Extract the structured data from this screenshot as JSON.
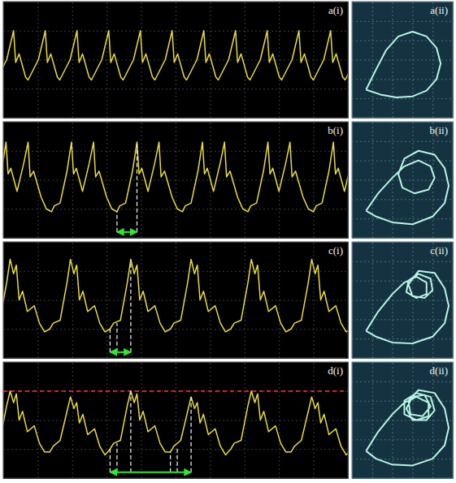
{
  "chart_data": [
    {
      "type": "line",
      "title": "a(i)",
      "x": [
        -0.2,
        0.1,
        0.3,
        0.36,
        0.46,
        0.65,
        0.72,
        1.02,
        1.22,
        1.28,
        1.38,
        1.57,
        1.64,
        1.94,
        2.14,
        2.2,
        2.3,
        2.49,
        2.56,
        2.86,
        3.06,
        3.12,
        3.22,
        3.41,
        3.48,
        3.78,
        3.98,
        4.04,
        4.14,
        4.33,
        4.4,
        4.7,
        4.9,
        4.96,
        5.06,
        5.25,
        5.32,
        5.62,
        5.82,
        5.88,
        5.98,
        6.17,
        6.24,
        6.54,
        6.74,
        6.8,
        6.9,
        7.09,
        7.16,
        7.46,
        7.66,
        7.72,
        7.82,
        8.01,
        8.08,
        8.38,
        8.58,
        8.64,
        8.74,
        8.93,
        9.0,
        9.3,
        9.5,
        9.56,
        9.66,
        9.85,
        9.92,
        10.22
      ],
      "series": [
        {
          "color": "#e8dc3c",
          "values": [
            1.3,
            2.0,
            3.0,
            1.9,
            2.2,
            1.4,
            1.3,
            2.0,
            3.0,
            1.9,
            2.2,
            1.4,
            1.3,
            2.0,
            3.0,
            1.9,
            2.2,
            1.4,
            1.3,
            2.0,
            3.0,
            1.9,
            2.2,
            1.4,
            1.3,
            2.0,
            3.0,
            1.9,
            2.2,
            1.4,
            1.3,
            2.0,
            3.0,
            1.9,
            2.2,
            1.4,
            1.3,
            2.0,
            3.0,
            1.9,
            2.2,
            1.4,
            1.3,
            2.0,
            3.0,
            1.9,
            2.2,
            1.4,
            1.3,
            2.0,
            3.0,
            1.9,
            2.2,
            1.4,
            1.3,
            2.0,
            3.0,
            1.9,
            2.2,
            1.4,
            1.3,
            2.0,
            3.0,
            1.9,
            2.2,
            1.4,
            1.3,
            2.0
          ]
        }
      ],
      "xlim": [
        0,
        10
      ],
      "ylim": [
        0,
        4
      ],
      "xticks": [
        0,
        1,
        2,
        3,
        4,
        5,
        6,
        7,
        8,
        9,
        10
      ],
      "yticks": [
        0,
        1,
        2,
        3,
        4
      ],
      "grid": true,
      "tick_labels": false
    },
    {
      "type": "line",
      "title": "a(ii)",
      "x": [
        0.7,
        1.2,
        1.7,
        2.3,
        3.0,
        3.7,
        4.2,
        4.4,
        4.2,
        3.7,
        3.0,
        2.2,
        1.4,
        0.7
      ],
      "series": [
        {
          "color": "#b8f5e4",
          "values": [
            1.45,
            2.5,
            3.5,
            4.2,
            4.45,
            4.2,
            3.6,
            2.8,
            2.0,
            1.4,
            1.1,
            1.05,
            1.2,
            1.45
          ]
        }
      ],
      "xlim": [
        0,
        5
      ],
      "ylim": [
        0,
        6
      ],
      "xticks": [
        0,
        1,
        2,
        3,
        4,
        5
      ],
      "yticks": [
        0,
        1,
        2,
        3,
        4,
        5,
        6
      ],
      "grid": true,
      "tick_labels": false
    },
    {
      "type": "line",
      "title": "b(i)",
      "x": [
        -0.5,
        -0.42,
        -0.25,
        -0.05,
        0.08,
        0.14,
        0.22,
        0.4,
        0.6,
        0.72,
        0.78,
        0.88,
        1.1,
        1.25,
        1.4,
        1.48,
        1.65,
        1.85,
        1.98,
        2.04,
        2.12,
        2.3,
        2.5,
        2.62,
        2.68,
        2.78,
        3.0,
        3.15,
        3.3,
        3.38,
        3.55,
        3.75,
        3.88,
        3.94,
        4.02,
        4.2,
        4.4,
        4.52,
        4.58,
        4.68,
        4.9,
        5.05,
        5.2,
        5.28,
        5.45,
        5.65,
        5.78,
        5.84,
        5.92,
        6.1,
        6.3,
        6.42,
        6.48,
        6.58,
        6.8,
        6.95,
        7.1,
        7.18,
        7.35,
        7.55,
        7.68,
        7.74,
        7.82,
        8.0,
        8.2,
        8.32,
        8.38,
        8.48,
        8.7,
        8.85,
        9.0,
        9.08,
        9.25,
        9.45,
        9.58,
        9.64,
        9.72,
        9.9,
        10.1,
        10.22
      ],
      "series": [
        {
          "color": "#e8dc3c",
          "values": [
            0.9,
            1.1,
            1.2,
            2.3,
            3.3,
            2.2,
            2.4,
            1.6,
            2.6,
            3.3,
            2.1,
            2.3,
            1.4,
            1.0,
            0.9,
            1.1,
            1.2,
            2.3,
            3.3,
            2.2,
            2.4,
            1.6,
            2.6,
            3.3,
            2.1,
            2.3,
            1.4,
            1.0,
            0.9,
            1.1,
            1.2,
            2.3,
            3.3,
            2.2,
            2.4,
            1.6,
            2.6,
            3.3,
            2.1,
            2.3,
            1.4,
            1.0,
            0.9,
            1.1,
            1.2,
            2.3,
            3.3,
            2.2,
            2.4,
            1.6,
            2.6,
            3.3,
            2.1,
            2.3,
            1.4,
            1.0,
            0.9,
            1.1,
            1.2,
            2.3,
            3.3,
            2.2,
            2.4,
            1.6,
            2.6,
            3.3,
            2.1,
            2.3,
            1.4,
            1.0,
            0.9,
            1.1,
            1.2,
            2.3,
            3.3,
            2.2,
            2.4,
            1.6,
            2.6,
            3.3
          ]
        }
      ],
      "vlines": [
        {
          "x": 3.3,
          "y": [
            0.2,
            0.9
          ]
        },
        {
          "x": 3.88,
          "y": [
            0.2,
            3.3
          ]
        }
      ],
      "arrow": {
        "x": [
          3.3,
          3.88
        ],
        "y": 0.2,
        "color": "#2ee82e"
      },
      "xlim": [
        0,
        10
      ],
      "ylim": [
        0,
        4
      ],
      "xticks": [
        0,
        1,
        2,
        3,
        4,
        5,
        6,
        7,
        8,
        9,
        10
      ],
      "yticks": [
        0,
        1,
        2,
        3,
        4
      ],
      "grid": true,
      "tick_labels": false
    },
    {
      "type": "line",
      "title": "b(ii)",
      "x": [
        0.7,
        1.3,
        2.0,
        2.6,
        3.3,
        3.9,
        4.1,
        3.8,
        3.1,
        2.5,
        2.3,
        2.6,
        3.3,
        4.1,
        4.6,
        4.8,
        4.6,
        4.0,
        3.0,
        2.0,
        1.2,
        0.7
      ],
      "series": [
        {
          "color": "#b8f5e4",
          "values": [
            1.4,
            2.3,
            3.1,
            3.7,
            4.0,
            3.7,
            3.1,
            2.5,
            2.3,
            2.6,
            3.3,
            4.1,
            4.5,
            4.3,
            3.6,
            2.7,
            1.8,
            1.1,
            0.7,
            0.8,
            1.1,
            1.4
          ]
        }
      ],
      "xlim": [
        0,
        5
      ],
      "ylim": [
        0,
        6
      ],
      "xticks": [
        0,
        1,
        2,
        3,
        4,
        5
      ],
      "yticks": [
        0,
        1,
        2,
        3,
        4,
        5,
        6
      ],
      "grid": true,
      "tick_labels": false
    },
    {
      "type": "line",
      "title": "c(i)",
      "x": [
        -0.4,
        -0.3,
        -0.1,
        0.1,
        0.2,
        0.3,
        0.38,
        0.46,
        0.56,
        0.7,
        0.9,
        1.05,
        1.2,
        1.35,
        1.45,
        1.65,
        1.85,
        1.95,
        2.05,
        2.13,
        2.21,
        2.31,
        2.45,
        2.65,
        2.8,
        2.95,
        3.1,
        3.2,
        3.4,
        3.6,
        3.7,
        3.8,
        3.88,
        3.96,
        4.06,
        4.2,
        4.4,
        4.55,
        4.7,
        4.85,
        4.95,
        5.15,
        5.35,
        5.45,
        5.55,
        5.63,
        5.71,
        5.81,
        5.95,
        6.15,
        6.3,
        6.45,
        6.6,
        6.7,
        6.9,
        7.1,
        7.2,
        7.3,
        7.38,
        7.46,
        7.56,
        7.7,
        7.9,
        8.05,
        8.2,
        8.35,
        8.45,
        8.65,
        8.85,
        8.95,
        9.05,
        9.13,
        9.21,
        9.31,
        9.45,
        9.65,
        9.8,
        9.95,
        10.1
      ],
      "series": [
        {
          "color": "#e8dc3c",
          "values": [
            1.0,
            1.2,
            1.3,
            2.6,
            3.4,
            2.9,
            3.2,
            2.0,
            2.3,
            1.6,
            1.8,
            1.2,
            0.9,
            1.0,
            1.2,
            1.3,
            2.6,
            3.4,
            2.9,
            3.2,
            2.0,
            2.3,
            1.6,
            1.8,
            1.2,
            0.9,
            1.0,
            1.2,
            1.3,
            2.6,
            3.4,
            2.9,
            3.2,
            2.0,
            2.3,
            1.6,
            1.8,
            1.2,
            0.9,
            1.0,
            1.2,
            1.3,
            2.6,
            3.4,
            2.9,
            3.2,
            2.0,
            2.3,
            1.6,
            1.8,
            1.2,
            0.9,
            1.0,
            1.2,
            1.3,
            2.6,
            3.4,
            2.9,
            3.2,
            2.0,
            2.3,
            1.6,
            1.8,
            1.2,
            0.9,
            1.0,
            1.2,
            1.3,
            2.6,
            3.4,
            2.9,
            3.2,
            2.0,
            2.3,
            1.6,
            1.8,
            1.2,
            0.9,
            1.0
          ]
        }
      ],
      "vlines": [
        {
          "x": 3.1,
          "y": [
            0.2,
            1.0
          ]
        },
        {
          "x": 3.3,
          "y": [
            0.2,
            1.2
          ]
        },
        {
          "x": 3.7,
          "y": [
            0.2,
            3.4
          ]
        }
      ],
      "arrow": {
        "x": [
          3.1,
          3.7
        ],
        "y": 0.2,
        "color": "#2ee82e"
      },
      "xlim": [
        0,
        10
      ],
      "ylim": [
        0,
        4
      ],
      "xticks": [
        0,
        1,
        2,
        3,
        4,
        5,
        6,
        7,
        8,
        9,
        10
      ],
      "yticks": [
        0,
        1,
        2,
        3,
        4
      ],
      "grid": true,
      "tick_labels": false
    },
    {
      "type": "line",
      "title": "c(ii)",
      "x": [
        0.7,
        1.3,
        2.0,
        2.6,
        3.2,
        3.7,
        3.7,
        3.2,
        2.7,
        2.8,
        3.3,
        3.9,
        4.0,
        3.6,
        3.0,
        2.8,
        3.3,
        4.1,
        4.6,
        4.8,
        4.6,
        4.0,
        3.0,
        2.0,
        1.2,
        0.7
      ],
      "series": [
        {
          "color": "#b8f5e4",
          "values": [
            1.4,
            2.4,
            3.3,
            3.9,
            4.2,
            3.9,
            3.3,
            3.1,
            3.4,
            4.0,
            4.35,
            4.1,
            3.5,
            3.1,
            3.2,
            3.8,
            4.5,
            4.4,
            3.6,
            2.7,
            1.8,
            1.1,
            0.75,
            0.8,
            1.1,
            1.4
          ]
        }
      ],
      "xlim": [
        0,
        5
      ],
      "ylim": [
        0,
        6
      ],
      "xticks": [
        0,
        1,
        2,
        3,
        4,
        5
      ],
      "yticks": [
        0,
        1,
        2,
        3,
        4,
        5,
        6
      ],
      "grid": true,
      "tick_labels": false
    },
    {
      "type": "line",
      "title": "d(i)",
      "x": [
        -0.4,
        -0.3,
        -0.1,
        0.1,
        0.2,
        0.3,
        0.38,
        0.46,
        0.56,
        0.7,
        0.9,
        1.05,
        1.2,
        1.35,
        1.45,
        1.65,
        1.85,
        1.95,
        2.05,
        2.13,
        2.21,
        2.31,
        2.45,
        2.65,
        2.8,
        2.95,
        3.1,
        3.2,
        3.4,
        3.6,
        3.7,
        3.8,
        3.88,
        3.96,
        4.06,
        4.2,
        4.4,
        4.55,
        4.7,
        4.85,
        4.95,
        5.15,
        5.35,
        5.45,
        5.55,
        5.63,
        5.71,
        5.81,
        5.95,
        6.15,
        6.3,
        6.45,
        6.6,
        6.7,
        6.9,
        7.1,
        7.2,
        7.3,
        7.38,
        7.46,
        7.56,
        7.7,
        7.9,
        8.05,
        8.2,
        8.35,
        8.45,
        8.65,
        8.85,
        8.95,
        9.05,
        9.13,
        9.21,
        9.31,
        9.45,
        9.65,
        9.8,
        9.95,
        10.1
      ],
      "series": [
        {
          "color": "#e8dc3c",
          "values": [
            1.0,
            1.2,
            1.3,
            2.5,
            3.0,
            2.6,
            2.9,
            2.0,
            2.3,
            1.6,
            1.8,
            1.2,
            0.9,
            0.9,
            1.1,
            1.3,
            2.3,
            2.8,
            2.4,
            2.6,
            1.9,
            2.2,
            1.5,
            1.7,
            1.1,
            0.8,
            1.0,
            1.2,
            1.3,
            2.5,
            3.0,
            2.6,
            2.9,
            2.0,
            2.3,
            1.6,
            1.8,
            1.2,
            0.9,
            0.9,
            1.1,
            1.3,
            2.3,
            2.8,
            2.4,
            2.6,
            1.9,
            2.2,
            1.5,
            1.7,
            1.1,
            0.8,
            1.0,
            1.2,
            1.3,
            2.5,
            3.0,
            2.6,
            2.9,
            2.0,
            2.3,
            1.6,
            1.8,
            1.2,
            0.9,
            0.9,
            1.1,
            1.3,
            2.3,
            2.8,
            2.4,
            2.6,
            1.9,
            2.2,
            1.5,
            1.7,
            1.1,
            0.8,
            1.0
          ]
        }
      ],
      "hline": {
        "y": 3.0,
        "color": "#ff3030"
      },
      "vlines": [
        {
          "x": 3.1,
          "y": [
            0.2,
            1.0
          ]
        },
        {
          "x": 3.3,
          "y": [
            0.2,
            1.2
          ]
        },
        {
          "x": 3.7,
          "y": [
            0.2,
            3.0
          ]
        },
        {
          "x": 4.85,
          "y": [
            0.2,
            0.9
          ]
        },
        {
          "x": 5.05,
          "y": [
            0.2,
            1.1
          ]
        },
        {
          "x": 5.45,
          "y": [
            0.2,
            2.8
          ]
        }
      ],
      "arrow": {
        "x": [
          3.1,
          5.45
        ],
        "y": 0.2,
        "color": "#2ee82e"
      },
      "xlim": [
        0,
        10
      ],
      "ylim": [
        0,
        4
      ],
      "xticks": [
        0,
        1,
        2,
        3,
        4,
        5,
        6,
        7,
        8,
        9,
        10
      ],
      "yticks": [
        0,
        1,
        2,
        3,
        4
      ],
      "grid": true,
      "tick_labels": false
    },
    {
      "type": "line",
      "title": "d(ii)",
      "x": [
        0.7,
        1.3,
        2.0,
        2.6,
        3.2,
        3.8,
        3.8,
        3.2,
        2.6,
        2.6,
        3.2,
        3.9,
        4.1,
        3.7,
        3.0,
        2.7,
        3.0,
        3.6,
        3.9,
        3.5,
        2.9,
        2.8,
        3.3,
        4.1,
        4.6,
        4.8,
        4.6,
        4.0,
        3.0,
        2.0,
        1.2,
        0.7
      ],
      "series": [
        {
          "color": "#b8f5e4",
          "values": [
            1.4,
            2.4,
            3.3,
            3.9,
            4.2,
            3.9,
            3.2,
            3.0,
            3.3,
            4.0,
            4.4,
            4.2,
            3.5,
            3.0,
            3.0,
            3.6,
            4.2,
            4.3,
            3.7,
            3.2,
            3.3,
            4.0,
            4.55,
            4.4,
            3.6,
            2.6,
            1.7,
            1.0,
            0.65,
            0.7,
            1.0,
            1.4
          ]
        }
      ],
      "xlim": [
        0,
        5
      ],
      "ylim": [
        0,
        6
      ],
      "xticks": [
        0,
        1,
        2,
        3,
        4,
        5
      ],
      "yticks": [
        0,
        1,
        2,
        3,
        4,
        5,
        6
      ],
      "grid": true,
      "tick_labels": false
    }
  ]
}
